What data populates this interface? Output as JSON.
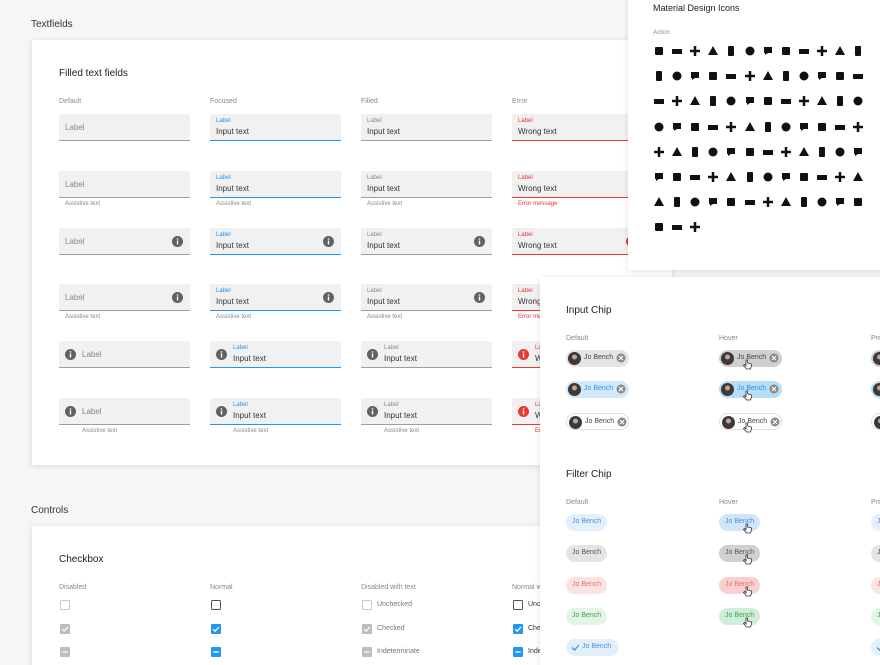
{
  "textfields": {
    "section_title": "Textfields",
    "card_title": "Filled text fields",
    "columns": [
      "Default",
      "Focused",
      "Filled",
      "Error"
    ],
    "label": "Label",
    "input_text": "Input text",
    "error_text": "Wrong text",
    "assistive_text": "Assistive text",
    "error_message": "Error message"
  },
  "controls": {
    "section_title": "Controls",
    "card_title": "Checkbox",
    "columns": [
      "Disabled",
      "Normal",
      "Disabled with text",
      "Normal with text"
    ],
    "states": [
      "Unchecked",
      "Checked",
      "Indeterminate"
    ]
  },
  "icons": {
    "title": "Material Design Icons",
    "category": "Action"
  },
  "chips": {
    "input_title": "Input Chip",
    "filter_title": "Filter Chip",
    "columns": [
      "Default",
      "Hover",
      "Pressed"
    ],
    "chip_text": "Jo Bench"
  }
}
